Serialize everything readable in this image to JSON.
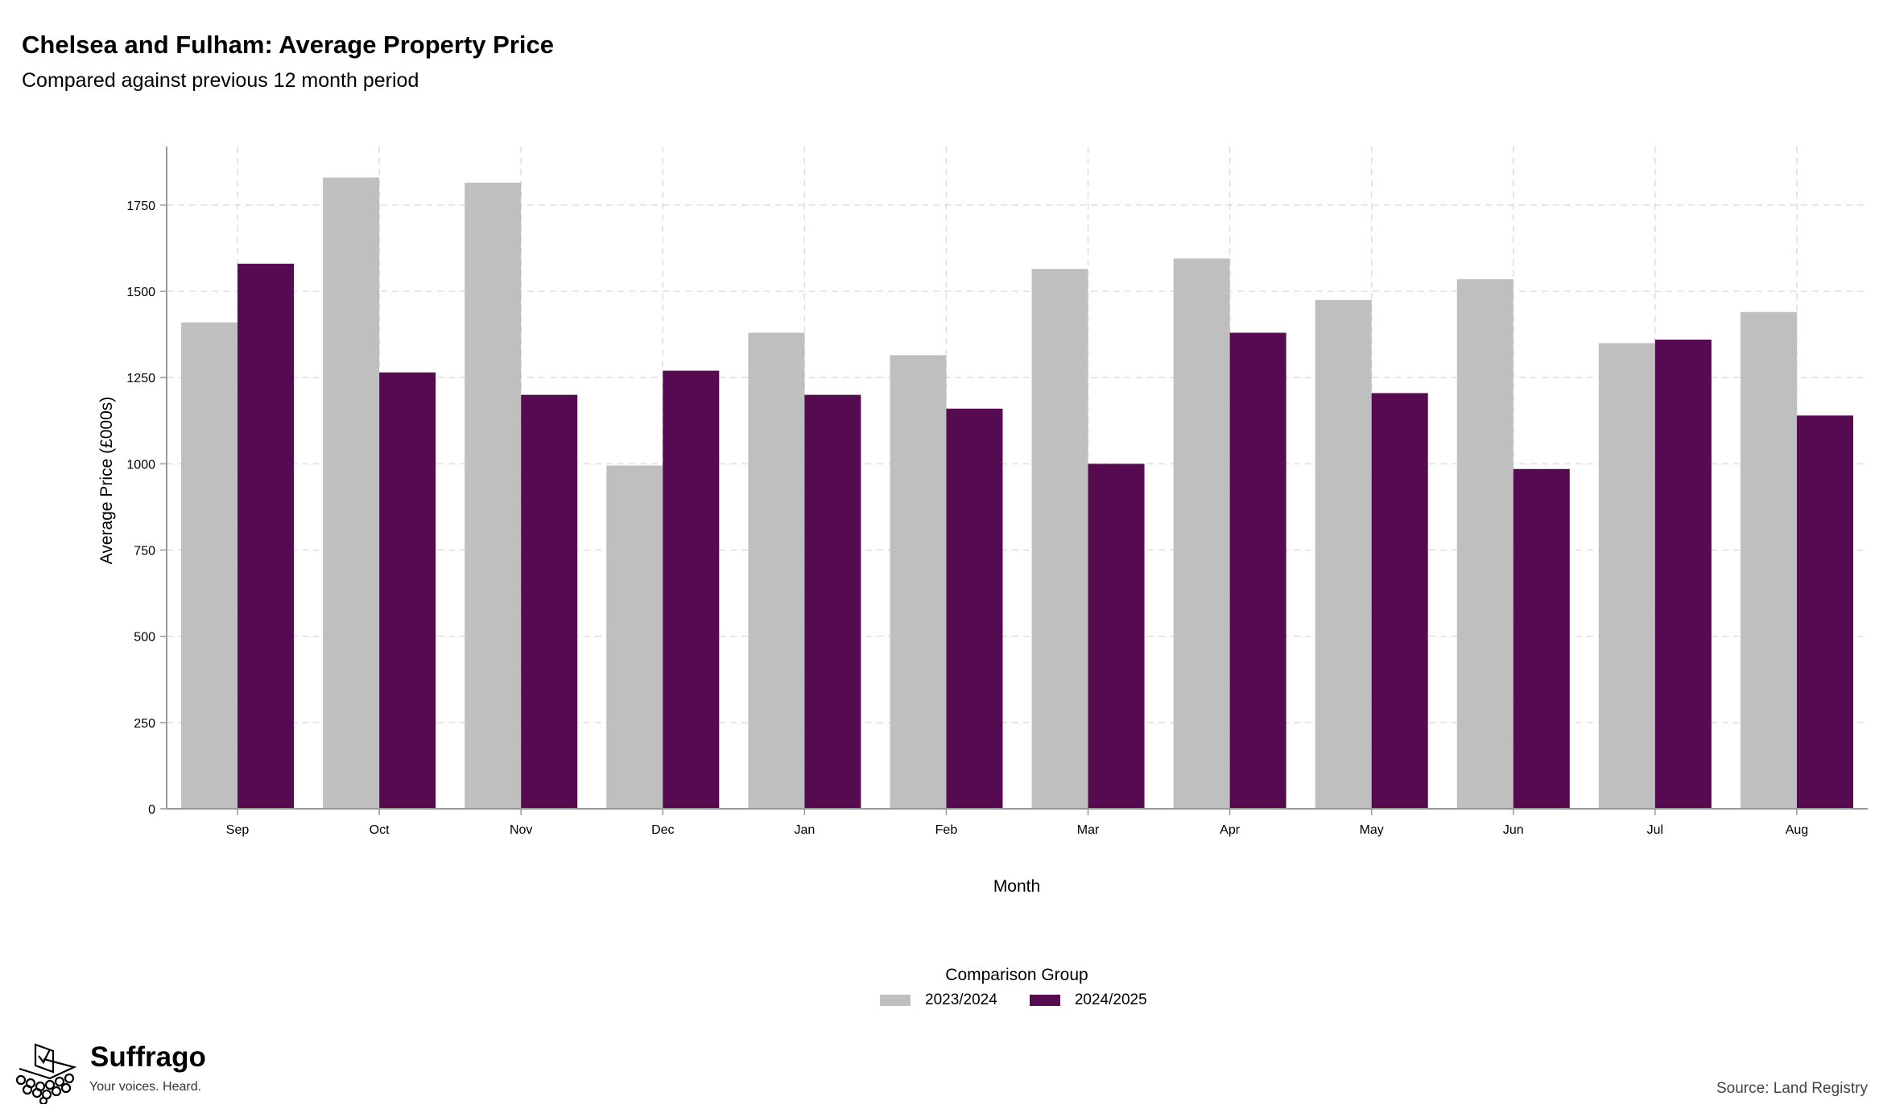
{
  "header": {
    "title": "Chelsea and Fulham: Average Property Price",
    "subtitle": "Compared against previous 12 month period"
  },
  "legend": {
    "title": "Comparison Group",
    "placement": "bottom-center"
  },
  "footer": {
    "brand": "Suffrago",
    "tagline": "Your voices. Heard.",
    "source": "Source: Land Registry",
    "logo_icon": "ballot-box-icon"
  },
  "colors": {
    "series_2023_2024": "#bfbfbf",
    "series_2024_2025": "#560b50",
    "grid": "#dddddd",
    "axis": "#999999"
  },
  "chart_data": {
    "type": "bar",
    "title": "Chelsea and Fulham: Average Property Price",
    "subtitle": "Compared against previous 12 month period",
    "xlabel": "Month",
    "ylabel": "Average Price (£000s)",
    "ylim": [
      0,
      1920
    ],
    "yticks": [
      0,
      250,
      500,
      750,
      1000,
      1250,
      1500,
      1750
    ],
    "grid": true,
    "categories": [
      "Sep",
      "Oct",
      "Nov",
      "Dec",
      "Jan",
      "Feb",
      "Mar",
      "Apr",
      "May",
      "Jun",
      "Jul",
      "Aug"
    ],
    "series": [
      {
        "name": "2023/2024",
        "values": [
          1410,
          1830,
          1815,
          995,
          1380,
          1315,
          1565,
          1595,
          1475,
          1535,
          1350,
          1440
        ]
      },
      {
        "name": "2024/2025",
        "values": [
          1580,
          1265,
          1200,
          1270,
          1200,
          1160,
          1000,
          1380,
          1205,
          985,
          1360,
          1140
        ]
      }
    ]
  }
}
